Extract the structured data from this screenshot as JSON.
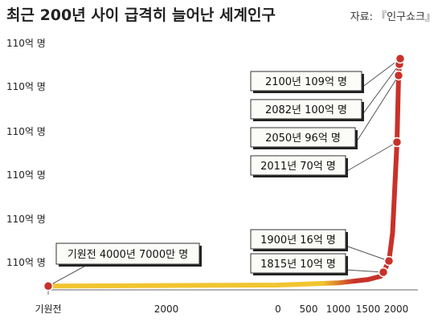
{
  "chart_data": {
    "type": "line",
    "title": "최근 200년 사이 급격히 늘어난 세계인구",
    "source": "자료: 『인구쇼크』",
    "y_tick_labels": [
      "110억 명",
      "110억 명",
      "110억 명",
      "110억 명",
      "110억 명",
      "110억 명"
    ],
    "x_tick_labels": [
      "기원전",
      "2000",
      "0",
      "500",
      "1000",
      "1500",
      "2000"
    ],
    "ylim": [
      0,
      110
    ],
    "series": [
      {
        "points": [
          {
            "year": -4000,
            "value": 0.7
          },
          {
            "year": 0,
            "value": 2
          },
          {
            "year": 1000,
            "value": 3
          },
          {
            "year": 1500,
            "value": 4.5
          },
          {
            "year": 1700,
            "value": 6
          },
          {
            "year": 1815,
            "value": 10
          },
          {
            "year": 1900,
            "value": 16
          },
          {
            "year": 1950,
            "value": 25
          },
          {
            "year": 2011,
            "value": 70
          },
          {
            "year": 2050,
            "value": 96
          },
          {
            "year": 2082,
            "value": 100
          },
          {
            "year": 2100,
            "value": 109
          }
        ]
      }
    ],
    "annotations": [
      {
        "year": -4000,
        "value": 0.7,
        "label": "기원전 4000년 7000만 명"
      },
      {
        "year": 1815,
        "value": 10,
        "label": "1815년 10억 명"
      },
      {
        "year": 1900,
        "value": 16,
        "label": "1900년 16억 명"
      },
      {
        "year": 2011,
        "value": 70,
        "label": "2011년 70억 명"
      },
      {
        "year": 2050,
        "value": 96,
        "label": "2050년 96억 명"
      },
      {
        "year": 2082,
        "value": 100,
        "label": "2082년 100억 명"
      },
      {
        "year": 2100,
        "value": 109,
        "label": "2100년 109억 명"
      }
    ],
    "colors": {
      "early_line": "#f2c430",
      "late_line": "#c8322a",
      "marker": "#c8322a",
      "callout_bg": "#fbfbf7"
    }
  }
}
